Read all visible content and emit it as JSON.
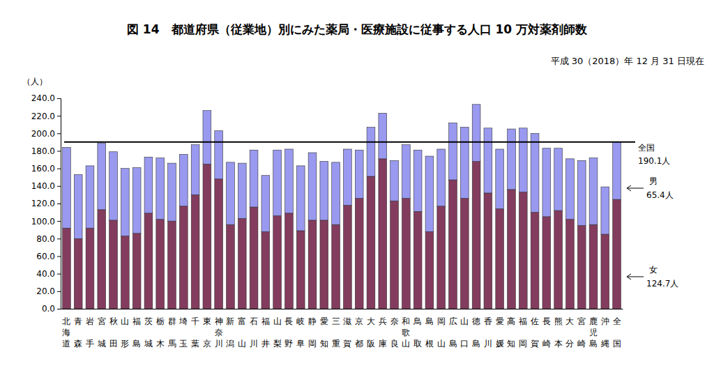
{
  "chart_data": {
    "type": "bar",
    "stacked": true,
    "title": "図 14　都道府県（従業地）別にみた薬局・医療施設に従事する人口 10 万対薬剤師数",
    "subtitle": "平成 30（2018）年 12 月 31 日現在",
    "y_label": "（人）",
    "categories": [
      "北海道",
      "青森",
      "岩手",
      "宮城",
      "秋田",
      "山形",
      "福島",
      "茨城",
      "栃木",
      "群馬",
      "埼玉",
      "千葉",
      "東京",
      "神奈川",
      "新潟",
      "富山",
      "石川",
      "福井",
      "山梨",
      "長野",
      "岐阜",
      "静岡",
      "愛知",
      "三重",
      "滋賀",
      "京都",
      "大阪",
      "兵庫",
      "奈良",
      "和歌山",
      "鳥取",
      "島根",
      "岡山",
      "広島",
      "山口",
      "徳島",
      "香川",
      "愛媛",
      "高知",
      "福岡",
      "佐賀",
      "長崎",
      "熊本",
      "大分",
      "宮崎",
      "鹿児島",
      "沖縄",
      "全国"
    ],
    "series": [
      {
        "name": "女",
        "color": "#833c5e",
        "label": "124.7人",
        "values": [
          92,
          80,
          92,
          113,
          101,
          83,
          86,
          109,
          102,
          100,
          117,
          130,
          165,
          148,
          96,
          103,
          116,
          88,
          106,
          109,
          89,
          101,
          101,
          96,
          118,
          126,
          151,
          171,
          123,
          126,
          111,
          88,
          117,
          147,
          126,
          168,
          132,
          114,
          136,
          133,
          110,
          105,
          112,
          102,
          95,
          96,
          85,
          124.7
        ]
      },
      {
        "name": "男",
        "color": "#9999f0",
        "label": "65.4人",
        "values": [
          92,
          73,
          71,
          76,
          78,
          77,
          75,
          64,
          70,
          66,
          59,
          57,
          61,
          55,
          71,
          63,
          65,
          64,
          75,
          73,
          74,
          77,
          67,
          71,
          64,
          55,
          56,
          52,
          46,
          61,
          70,
          86,
          65,
          65,
          81,
          65,
          74,
          68,
          69,
          73,
          90,
          78,
          71,
          69,
          74,
          76,
          54,
          65.4
        ]
      }
    ],
    "reference_line": {
      "value": 190.1,
      "label": "全国",
      "value_label": "190.1人"
    },
    "ylim": [
      0,
      240
    ],
    "yticks": [
      {
        "value": 0,
        "label": "0.0"
      },
      {
        "value": 20,
        "label": "20.0"
      },
      {
        "value": 40,
        "label": "40.0"
      },
      {
        "value": 60,
        "label": "60.0"
      },
      {
        "value": 80,
        "label": "80.0"
      },
      {
        "value": 100,
        "label": "100.0"
      },
      {
        "value": 120,
        "label": "120.0"
      },
      {
        "value": 140,
        "label": "140.0"
      },
      {
        "value": 160,
        "label": "160.0"
      },
      {
        "value": 180,
        "label": "180.0"
      },
      {
        "value": 200,
        "label": "200.0"
      },
      {
        "value": 220,
        "label": "220.0"
      },
      {
        "value": 240,
        "label": "240.0"
      }
    ],
    "grid": false
  }
}
